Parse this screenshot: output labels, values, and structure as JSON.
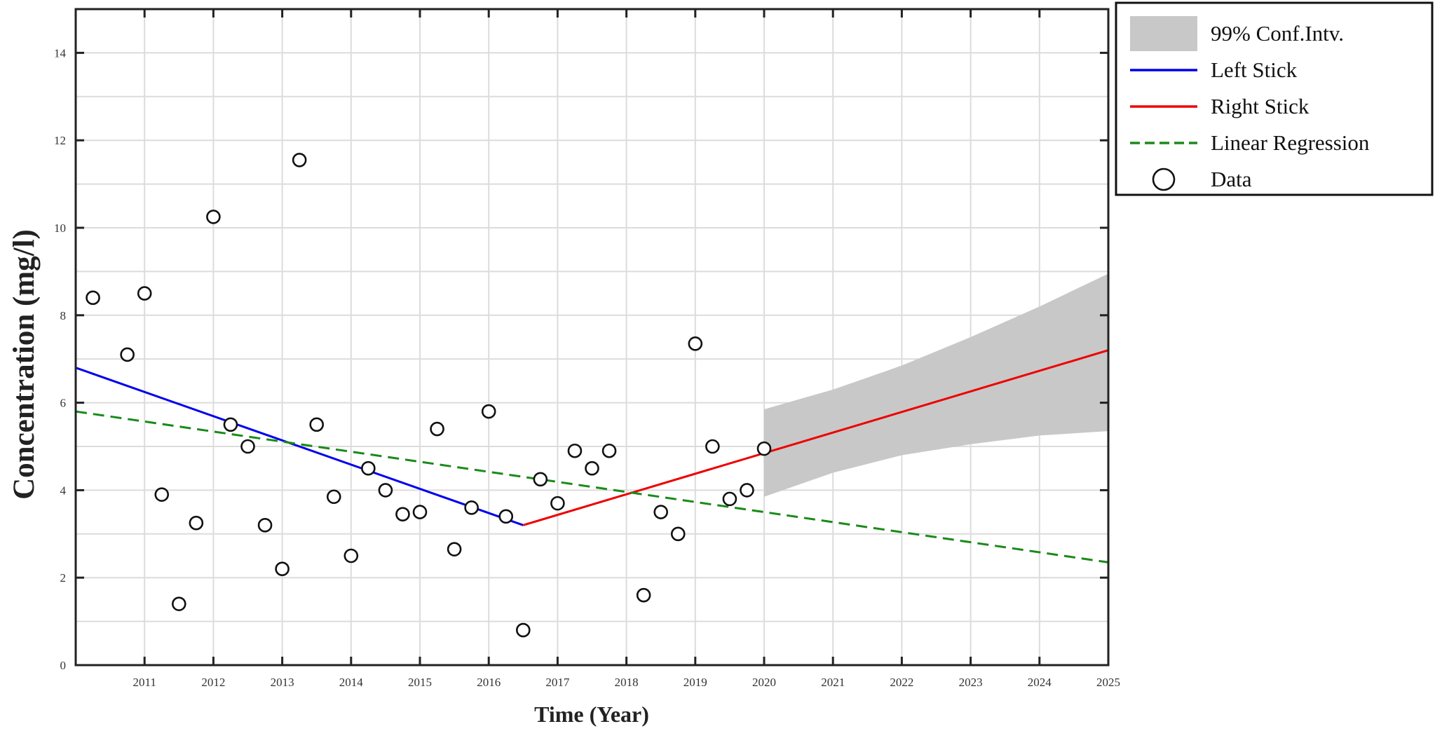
{
  "chart_data": {
    "type": "line",
    "title": "",
    "xlabel": "Time (Year)",
    "ylabel": "Concentration (mg/l)",
    "xlim": [
      2010,
      2025
    ],
    "ylim": [
      0,
      15
    ],
    "xticks": [
      2011,
      2012,
      2013,
      2014,
      2015,
      2016,
      2017,
      2018,
      2019,
      2020,
      2021,
      2022,
      2023,
      2024,
      2025
    ],
    "yticks": [
      0,
      2,
      4,
      6,
      8,
      10,
      12,
      14
    ],
    "grid": true,
    "legend_position": "outside-top-right",
    "legend": [
      {
        "label": "99% Conf.Intv.",
        "kind": "band",
        "color": "#c8c8c8"
      },
      {
        "label": "Left Stick",
        "kind": "line",
        "color": "#0000ee"
      },
      {
        "label": "Right Stick",
        "kind": "line",
        "color": "#ee0000"
      },
      {
        "label": "Linear Regression",
        "kind": "dashed",
        "color": "#1a8a1a"
      },
      {
        "label": "Data",
        "kind": "marker",
        "color": "#000000"
      }
    ],
    "series": [
      {
        "name": "Data",
        "type": "scatter",
        "x": [
          2010.25,
          2010.75,
          2011.0,
          2011.25,
          2011.5,
          2011.75,
          2012.0,
          2012.25,
          2012.5,
          2012.75,
          2013.0,
          2013.25,
          2013.5,
          2013.75,
          2014.0,
          2014.25,
          2014.5,
          2014.75,
          2015.0,
          2015.25,
          2015.5,
          2015.75,
          2016.0,
          2016.25,
          2016.5,
          2016.75,
          2017.0,
          2017.25,
          2017.5,
          2017.75,
          2018.25,
          2018.5,
          2018.75,
          2019.0,
          2019.25,
          2019.5,
          2019.75,
          2020.0
        ],
        "y": [
          8.4,
          7.1,
          8.5,
          3.9,
          1.4,
          3.25,
          10.25,
          5.5,
          5.0,
          3.2,
          2.2,
          11.55,
          5.5,
          3.85,
          2.5,
          4.5,
          4.0,
          3.45,
          3.5,
          5.4,
          2.65,
          3.6,
          5.8,
          3.4,
          0.8,
          4.25,
          3.7,
          4.9,
          4.5,
          4.9,
          1.6,
          3.5,
          3.0,
          7.35,
          5.0,
          3.8,
          4.0,
          4.95
        ]
      },
      {
        "name": "Left Stick",
        "type": "line",
        "x": [
          2010,
          2016.5
        ],
        "y": [
          6.8,
          3.2
        ]
      },
      {
        "name": "Right Stick",
        "type": "line",
        "x": [
          2016.5,
          2025
        ],
        "y": [
          3.2,
          7.2
        ]
      },
      {
        "name": "Linear Regression",
        "type": "line",
        "x": [
          2010,
          2025
        ],
        "y": [
          5.8,
          2.35
        ]
      },
      {
        "name": "99% Conf.Intv.",
        "type": "band",
        "x": [
          2020,
          2021,
          2022,
          2023,
          2024,
          2025
        ],
        "upper": [
          5.85,
          6.3,
          6.85,
          7.5,
          8.2,
          8.95
        ],
        "lower": [
          3.85,
          4.4,
          4.8,
          5.05,
          5.25,
          5.35
        ]
      }
    ]
  }
}
